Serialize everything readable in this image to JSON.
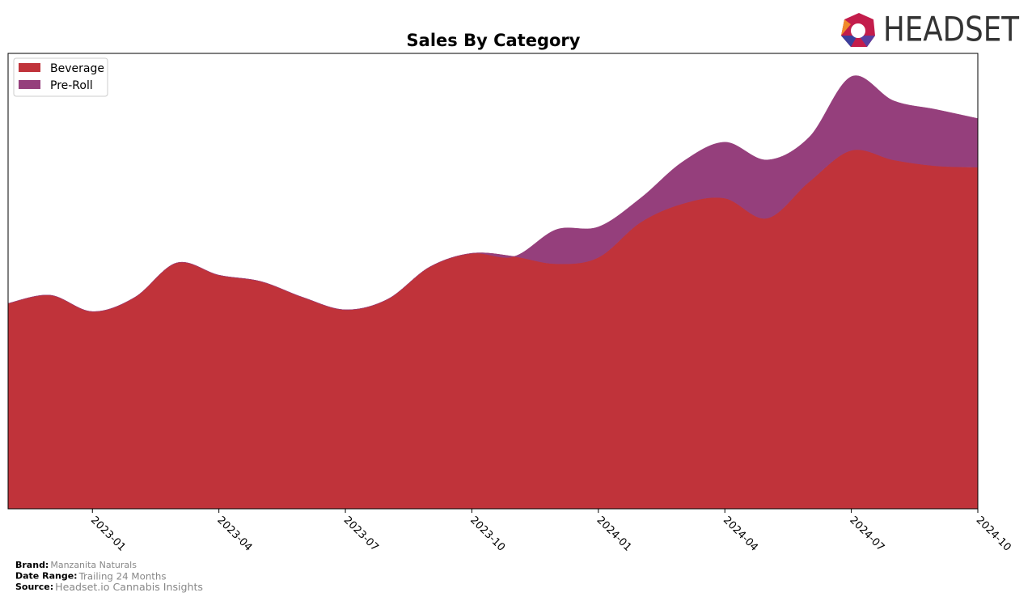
{
  "logo": "HEADSET",
  "chart_data": {
    "type": "area",
    "title": "Sales By Category",
    "x": [
      "2022-11",
      "2022-12",
      "2023-01",
      "2023-02",
      "2023-03",
      "2023-04",
      "2023-05",
      "2023-06",
      "2023-07",
      "2023-08",
      "2023-09",
      "2023-10",
      "2023-11",
      "2023-12",
      "2024-01",
      "2024-02",
      "2024-03",
      "2024-04",
      "2024-05",
      "2024-06",
      "2024-07",
      "2024-08",
      "2024-09",
      "2024-10"
    ],
    "series": [
      {
        "name": "Beverage",
        "color": "#c0333a",
        "values": [
          45.1,
          46.9,
          43.3,
          46.4,
          54.0,
          51.3,
          49.9,
          46.4,
          43.7,
          46.0,
          53.1,
          56.1,
          55.4,
          53.8,
          55.2,
          62.9,
          67.0,
          68.2,
          63.8,
          71.8,
          78.7,
          76.6,
          75.3,
          75.0
        ]
      },
      {
        "name": "Pre-Roll",
        "color": "#953f7c",
        "values": [
          0,
          0,
          0,
          0,
          0,
          0,
          0,
          0,
          0,
          0,
          0,
          0,
          0,
          7.5,
          6.7,
          5.3,
          9.2,
          12.3,
          12.8,
          9.8,
          16.2,
          13.0,
          12.4,
          10.7
        ]
      }
    ],
    "ylim": [
      0,
      100
    ],
    "xticks": [
      "2023-01",
      "2023-04",
      "2023-07",
      "2023-10",
      "2024-01",
      "2024-04",
      "2024-07",
      "2024-10"
    ],
    "stacked": true,
    "legend": "upper left"
  },
  "footer": [
    {
      "label": "Brand:",
      "value": "Manzanita Naturals"
    },
    {
      "label": "Date Range:",
      "value": "Trailing 24 Months"
    },
    {
      "label": "Source:",
      "value": "Headset.io Cannabis Insights"
    }
  ]
}
